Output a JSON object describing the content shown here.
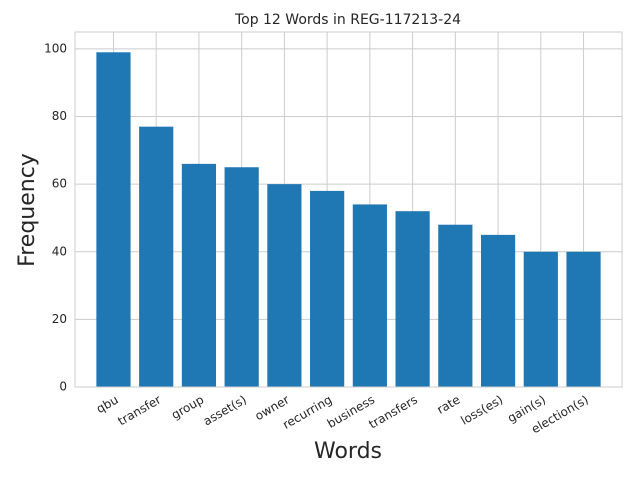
{
  "chart_data": {
    "type": "bar",
    "title": "Top 12 Words in REG-117213-24",
    "x_label": "Words",
    "y_label": "Frequency",
    "categories": [
      "qbu",
      "transfer",
      "group",
      "asset(s)",
      "owner",
      "recurring",
      "business",
      "transfers",
      "rate",
      "loss(es)",
      "gain(s)",
      "election(s)"
    ],
    "values": [
      99,
      77,
      66,
      65,
      60,
      58,
      54,
      52,
      48,
      45,
      40,
      40
    ],
    "color": "#1f77b4",
    "ylim": [
      0,
      105
    ],
    "yticks": [
      0,
      20,
      40,
      60,
      80,
      100
    ],
    "grid": true
  }
}
